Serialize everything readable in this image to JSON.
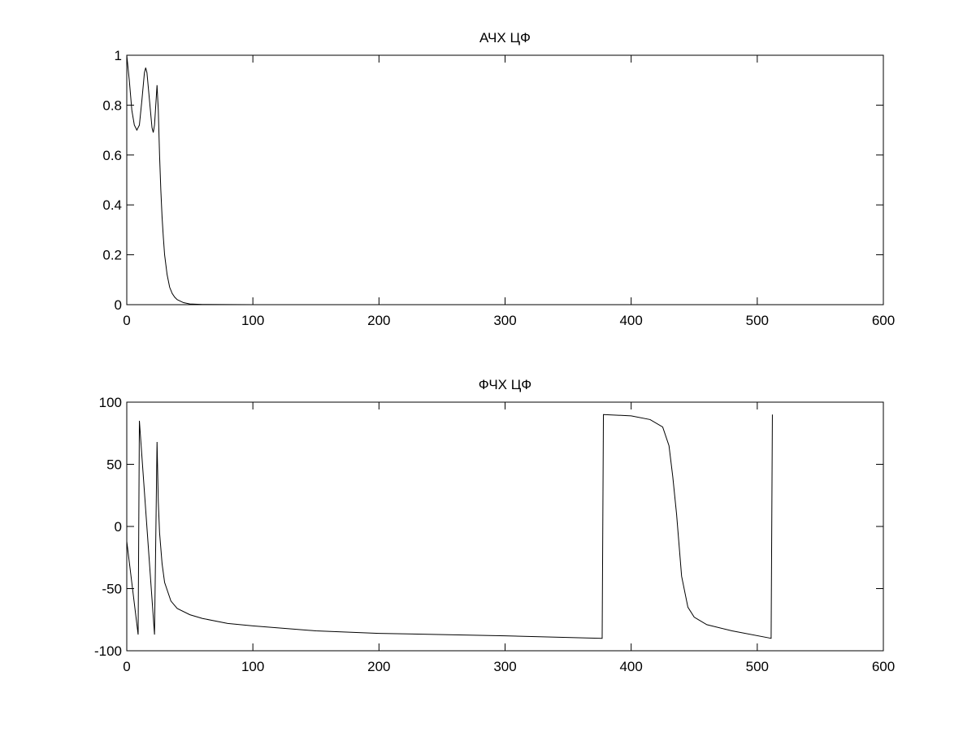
{
  "chart_data": [
    {
      "type": "line",
      "title": "АЧХ ЦФ",
      "x": [
        0,
        2,
        4,
        6,
        8,
        10,
        12,
        14,
        15,
        16,
        18,
        20,
        21,
        22,
        23,
        24,
        25,
        26,
        27,
        28,
        29,
        30,
        32,
        34,
        36,
        38,
        40,
        45,
        50,
        60,
        100,
        200,
        300,
        400,
        512
      ],
      "values": [
        1,
        0.9,
        0.78,
        0.72,
        0.7,
        0.72,
        0.82,
        0.93,
        0.95,
        0.93,
        0.82,
        0.71,
        0.69,
        0.72,
        0.8,
        0.88,
        0.78,
        0.6,
        0.46,
        0.35,
        0.27,
        0.2,
        0.12,
        0.07,
        0.045,
        0.03,
        0.02,
        0.008,
        0.003,
        0.001,
        0,
        0,
        0,
        0,
        0
      ],
      "color": "#000000",
      "xlim": [
        0,
        600
      ],
      "xticks": [
        0,
        100,
        200,
        300,
        400,
        500,
        600
      ],
      "ylim": [
        0,
        1
      ],
      "yticks": [
        0,
        0.2,
        0.4,
        0.6,
        0.8,
        1
      ]
    },
    {
      "type": "line",
      "title": "ФЧХ ЦФ",
      "x": [
        0,
        9,
        10,
        22,
        24,
        25,
        26,
        28,
        30,
        35,
        40,
        50,
        60,
        80,
        100,
        150,
        200,
        300,
        377,
        378,
        400,
        415,
        425,
        430,
        433,
        436,
        440,
        445,
        450,
        460,
        480,
        511,
        512
      ],
      "values": [
        -12,
        -87,
        85,
        -87,
        68,
        20,
        -5,
        -30,
        -45,
        -60,
        -66,
        -71,
        -74,
        -78,
        -80,
        -84,
        -86,
        -88,
        -90,
        90,
        89,
        86,
        80,
        65,
        40,
        10,
        -40,
        -65,
        -73,
        -79,
        -84,
        -90,
        90
      ],
      "color": "#000000",
      "xlim": [
        0,
        600
      ],
      "xticks": [
        0,
        100,
        200,
        300,
        400,
        500,
        600
      ],
      "ylim": [
        -100,
        100
      ],
      "yticks": [
        -100,
        -50,
        0,
        50,
        100
      ]
    }
  ]
}
